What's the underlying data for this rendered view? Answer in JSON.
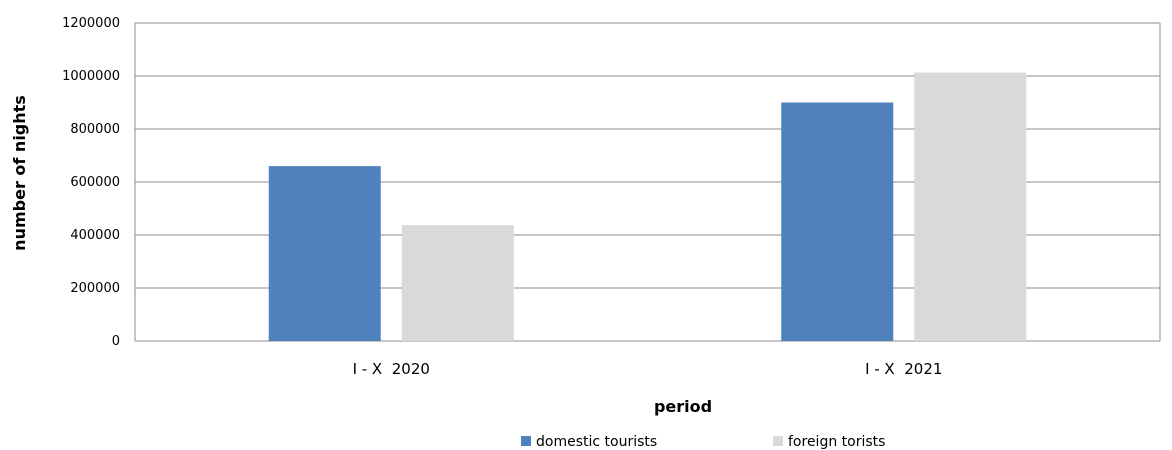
{
  "chart_data": {
    "type": "bar",
    "categories": [
      "I - X  2020",
      "I - X  2021"
    ],
    "series": [
      {
        "name": "domestic tourists",
        "values": [
          660000,
          900000
        ],
        "color": "#4f81bd"
      },
      {
        "name": "foreign torists",
        "values": [
          437000,
          1013000
        ],
        "color": "#d9d9d9"
      }
    ],
    "xlabel": "period",
    "ylabel": "number of nights",
    "ylim": [
      0,
      1200000
    ],
    "yticks": [
      0,
      200000,
      400000,
      600000,
      800000,
      1000000,
      1200000
    ],
    "grid": true,
    "legend_position": "bottom"
  }
}
